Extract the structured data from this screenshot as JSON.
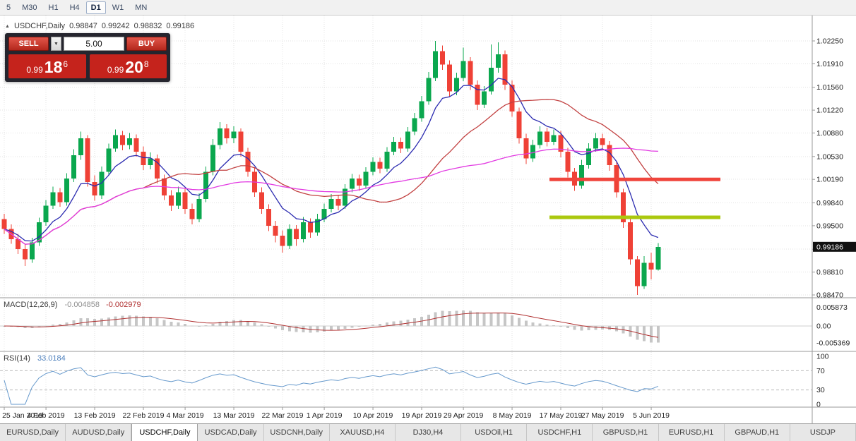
{
  "toolbar": {
    "timeframes": [
      "5",
      "M30",
      "H1",
      "H4",
      "D1",
      "W1",
      "MN"
    ],
    "active_timeframe": "D1"
  },
  "icons": {
    "collapse": "▲",
    "dropdown": "▼"
  },
  "chart_header": {
    "symbol": "USDCHF,Daily",
    "open": "0.98847",
    "high": "0.99242",
    "low": "0.98832",
    "close": "0.99186"
  },
  "one_click": {
    "sell_label": "SELL",
    "buy_label": "BUY",
    "volume": "5.00",
    "sell_price": {
      "prefix": "0.99",
      "big": "18",
      "sup": "6"
    },
    "buy_price": {
      "prefix": "0.99",
      "big": "20",
      "sup": "8"
    }
  },
  "indicators": {
    "macd": {
      "label": "MACD(12,26,9)",
      "value_main": "-0.004858",
      "value_signal": "-0.002979"
    },
    "rsi": {
      "label": "RSI(14)",
      "value": "33.0184"
    }
  },
  "price_scale": {
    "current_price": "0.99186",
    "macd_labels": [
      "0.005873",
      "0.00",
      "-0.005369"
    ],
    "rsi_labels": [
      "100",
      "70",
      "30",
      "0"
    ]
  },
  "dates": [
    "25 Jan 2019",
    "4 Feb 2019",
    "13 Feb 2019",
    "22 Feb 2019",
    "4 Mar 2019",
    "13 Mar 2019",
    "22 Mar 2019",
    "1 Apr 2019",
    "10 Apr 2019",
    "19 Apr 2019",
    "29 Apr 2019",
    "8 May 2019",
    "17 May 2019",
    "27 May 2019",
    "5 Jun 2019"
  ],
  "tabs": {
    "items": [
      "EURUSD,Daily",
      "AUDUSD,Daily",
      "USDCHF,Daily",
      "USDCAD,Daily",
      "USDCNH,Daily",
      "XAUUSD,H4",
      "DJ30,H4",
      "USDOil,H1",
      "USDCHF,H1",
      "GBPUSD,H1",
      "EURUSD,H1",
      "GBPAUD,H1",
      "USDJP"
    ],
    "active_index": 2
  },
  "chart_data": {
    "type": "candlestick",
    "symbol": "USDCHF",
    "timeframe": "Daily",
    "y_axis": {
      "min": 0.98428,
      "max": 1.02628,
      "labels": [
        1.0225,
        1.0191,
        1.0156,
        1.0122,
        1.0088,
        1.0053,
        1.0019,
        0.9984,
        0.995,
        0.9915,
        0.9881,
        0.9847
      ]
    },
    "x_tick_indices": [
      0,
      6,
      13,
      20,
      26,
      33,
      40,
      46,
      53,
      60,
      66,
      73,
      80,
      86,
      93
    ],
    "colors": {
      "up": "#0aa74e",
      "down": "#ef4136",
      "grid": "#e3e3e3",
      "rsi": "#6699cc",
      "macd_signal": "#b03030",
      "macd_histogram": "#c6c6c6"
    },
    "moving_averages": [
      {
        "name": "ma-fast-line",
        "method": "EMA",
        "period": 8,
        "color": "#2b2bb0"
      },
      {
        "name": "ma-medium-line",
        "method": "SMA",
        "period": 21,
        "color": "#c24040"
      },
      {
        "name": "ma-slow-line",
        "method": "SMA",
        "period": 50,
        "color": "#e23ae2"
      }
    ],
    "levels": [
      {
        "name": "resistance-line",
        "price": 1.0019,
        "color": "#f0453c",
        "width": 5
      },
      {
        "name": "support-line",
        "price": 0.99625,
        "color": "#abc80e",
        "width": 5
      }
    ],
    "rsi_levels": [
      70,
      30
    ],
    "ohlc": [
      [
        0.996,
        0.9968,
        0.9938,
        0.9945
      ],
      [
        0.9945,
        0.9952,
        0.9923,
        0.993
      ],
      [
        0.993,
        0.9938,
        0.9908,
        0.9915
      ],
      [
        0.9915,
        0.9922,
        0.989,
        0.99
      ],
      [
        0.99,
        0.9932,
        0.9895,
        0.9925
      ],
      [
        0.9925,
        0.9962,
        0.992,
        0.9955
      ],
      [
        0.9955,
        0.9988,
        0.995,
        0.998
      ],
      [
        0.998,
        1.0008,
        0.9975,
        1.0
      ],
      [
        1.0,
        1.0006,
        0.9978,
        0.9985
      ],
      [
        0.9985,
        1.0028,
        0.998,
        1.002
      ],
      [
        1.002,
        1.0064,
        1.0015,
        1.0055
      ],
      [
        1.0055,
        1.009,
        1.0048,
        1.008
      ],
      [
        1.008,
        1.0085,
        1.0008,
        1.0015
      ],
      [
        1.0015,
        1.0025,
        0.9987,
        0.9995
      ],
      [
        0.9995,
        1.0038,
        0.999,
        1.003
      ],
      [
        1.003,
        1.0072,
        1.0025,
        1.0065
      ],
      [
        1.0065,
        1.0093,
        1.006,
        1.0085
      ],
      [
        1.0085,
        1.0091,
        1.0062,
        1.007
      ],
      [
        1.007,
        1.0088,
        1.0064,
        1.008
      ],
      [
        1.008,
        1.0086,
        1.0053,
        1.006
      ],
      [
        1.006,
        1.0068,
        1.0033,
        1.004
      ],
      [
        1.004,
        1.0059,
        1.0034,
        1.005
      ],
      [
        1.005,
        1.0056,
        1.0013,
        1.002
      ],
      [
        1.002,
        1.0026,
        0.9988,
        0.9995
      ],
      [
        0.9995,
        1.0003,
        0.9972,
        0.998
      ],
      [
        0.998,
        1.0008,
        0.9975,
        1.0
      ],
      [
        1.0,
        1.0005,
        0.9968,
        0.9975
      ],
      [
        0.9975,
        0.9983,
        0.9952,
        0.996
      ],
      [
        0.996,
        0.9998,
        0.9955,
        0.999
      ],
      [
        0.999,
        1.0038,
        0.9985,
        1.003
      ],
      [
        1.003,
        1.0079,
        1.0025,
        1.007
      ],
      [
        1.007,
        1.0104,
        1.0064,
        1.0095
      ],
      [
        1.0095,
        1.0101,
        1.0072,
        1.008
      ],
      [
        1.008,
        1.0098,
        1.0073,
        1.009
      ],
      [
        1.009,
        1.0095,
        1.0053,
        1.006
      ],
      [
        1.006,
        1.0066,
        1.0023,
        1.003
      ],
      [
        1.003,
        1.0037,
        0.9993,
        1.0
      ],
      [
        1.0,
        1.0007,
        0.9968,
        0.9975
      ],
      [
        0.9975,
        0.9982,
        0.9942,
        0.995
      ],
      [
        0.995,
        0.9957,
        0.9925,
        0.9935
      ],
      [
        0.9935,
        0.9943,
        0.991,
        0.992
      ],
      [
        0.992,
        0.9952,
        0.9915,
        0.9945
      ],
      [
        0.9945,
        0.9951,
        0.992,
        0.993
      ],
      [
        0.993,
        0.9963,
        0.9925,
        0.9955
      ],
      [
        0.9955,
        0.9961,
        0.9932,
        0.994
      ],
      [
        0.994,
        0.9968,
        0.9935,
        0.996
      ],
      [
        0.996,
        0.9983,
        0.9955,
        0.9975
      ],
      [
        0.9975,
        0.9997,
        0.997,
        0.999
      ],
      [
        0.999,
        0.9996,
        0.9973,
        0.998
      ],
      [
        0.998,
        1.0012,
        0.9975,
        1.0005
      ],
      [
        1.0005,
        1.0027,
        1.0,
        1.002
      ],
      [
        1.002,
        1.0026,
        1.0002,
        1.001
      ],
      [
        1.001,
        1.0037,
        1.0005,
        1.003
      ],
      [
        1.003,
        1.0052,
        1.0025,
        1.0045
      ],
      [
        1.0045,
        1.0051,
        1.0028,
        1.0035
      ],
      [
        1.0035,
        1.0067,
        1.003,
        1.006
      ],
      [
        1.006,
        1.0082,
        1.0055,
        1.0075
      ],
      [
        1.0075,
        1.0081,
        1.0058,
        1.0065
      ],
      [
        1.0065,
        1.0097,
        1.006,
        1.009
      ],
      [
        1.009,
        1.0118,
        1.0085,
        1.011
      ],
      [
        1.011,
        1.0143,
        1.0105,
        1.0135
      ],
      [
        1.0135,
        1.0179,
        1.013,
        1.017
      ],
      [
        1.017,
        1.0225,
        1.0165,
        1.021
      ],
      [
        1.021,
        1.0218,
        1.0182,
        1.019
      ],
      [
        1.019,
        1.0196,
        1.0142,
        1.015
      ],
      [
        1.015,
        1.0178,
        1.0144,
        1.017
      ],
      [
        1.017,
        1.0215,
        1.0165,
        1.0195
      ],
      [
        1.0195,
        1.0201,
        1.0152,
        1.016
      ],
      [
        1.016,
        1.0166,
        1.0122,
        1.013
      ],
      [
        1.013,
        1.0158,
        1.0125,
        1.015
      ],
      [
        1.015,
        1.022,
        1.0145,
        1.0185
      ],
      [
        1.0185,
        1.0223,
        1.0178,
        1.0205
      ],
      [
        1.0205,
        1.0211,
        1.0152,
        1.016
      ],
      [
        1.016,
        1.0166,
        1.0112,
        1.012
      ],
      [
        1.012,
        1.0126,
        1.0072,
        1.008
      ],
      [
        1.008,
        1.0087,
        1.0042,
        1.005
      ],
      [
        1.005,
        1.0078,
        1.0045,
        1.007
      ],
      [
        1.007,
        1.0098,
        1.0065,
        1.009
      ],
      [
        1.009,
        1.0096,
        1.0068,
        1.0075
      ],
      [
        1.0075,
        1.0093,
        1.007,
        1.0085
      ],
      [
        1.0085,
        1.0091,
        1.0052,
        1.006
      ],
      [
        1.006,
        1.0066,
        1.0022,
        1.003
      ],
      [
        1.003,
        1.0036,
        1.0002,
        1.001
      ],
      [
        1.001,
        1.0048,
        1.0005,
        1.004
      ],
      [
        1.004,
        1.0073,
        1.0035,
        1.0065
      ],
      [
        1.0065,
        1.0088,
        1.006,
        1.008
      ],
      [
        1.008,
        1.0087,
        1.0062,
        1.007
      ],
      [
        1.007,
        1.0076,
        1.0032,
        1.004
      ],
      [
        1.004,
        1.0046,
        0.9992,
        1.0
      ],
      [
        1.0,
        1.0005,
        0.9947,
        0.9955
      ],
      [
        0.9955,
        0.996,
        0.9892,
        0.99
      ],
      [
        0.99,
        0.9905,
        0.9847,
        0.986
      ],
      [
        0.986,
        0.9905,
        0.9856,
        0.9895
      ],
      [
        0.9895,
        0.991,
        0.987,
        0.9885
      ],
      [
        0.98847,
        0.99242,
        0.98832,
        0.99186
      ]
    ]
  }
}
